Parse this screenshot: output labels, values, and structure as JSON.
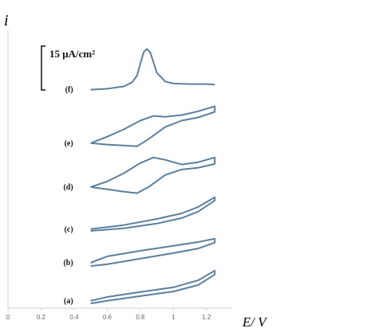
{
  "chart_data": {
    "type": "line",
    "y_label": "i",
    "x_label": "E/ V",
    "xlim": [
      0,
      1.35
    ],
    "xticks": [
      0,
      0.2,
      0.4,
      0.6,
      0.8,
      1,
      1.2
    ],
    "ylim": [
      0,
      95
    ],
    "scale_bar": {
      "label": "15 μA/cm²",
      "value": 15
    },
    "series": [
      {
        "name": "(a)",
        "color": "#5b7f9c",
        "x": [
          0.5,
          0.6,
          0.8,
          1.0,
          1.15,
          1.25,
          1.25,
          1.15,
          1.0,
          0.8,
          0.6,
          0.5
        ],
        "y": [
          2.5,
          3.8,
          5.5,
          7.1,
          9.5,
          12.8,
          11.5,
          7.9,
          5.7,
          4.1,
          2.5,
          1.6
        ]
      },
      {
        "name": "(b)",
        "color": "#5b7f9c",
        "x": [
          0.5,
          0.6,
          0.8,
          1.0,
          1.15,
          1.25,
          1.25,
          1.15,
          1.0,
          0.8,
          0.6,
          0.5
        ],
        "y": [
          15.5,
          17.7,
          19.6,
          21.3,
          22.6,
          23.7,
          22.4,
          20.4,
          18.8,
          16.9,
          15.0,
          14.4
        ]
      },
      {
        "name": "(c)",
        "color": "#5b7f9c",
        "x": [
          0.5,
          0.7,
          0.9,
          1.05,
          1.15,
          1.25,
          1.25,
          1.15,
          1.05,
          0.9,
          0.7,
          0.5
        ],
        "y": [
          27.0,
          28.4,
          30.5,
          32.4,
          34.6,
          37.9,
          36.8,
          33.0,
          30.8,
          28.9,
          27.3,
          26.4
        ]
      },
      {
        "name": "(d)",
        "color": "#5b7f9c",
        "x": [
          0.5,
          0.6,
          0.7,
          0.8,
          0.88,
          0.95,
          1.05,
          1.15,
          1.25,
          1.25,
          1.15,
          1.05,
          0.95,
          0.85,
          0.78,
          0.7,
          0.6,
          0.5
        ],
        "y": [
          41.4,
          43.3,
          46.1,
          49.6,
          51.5,
          50.7,
          49.1,
          49.9,
          51.5,
          49.3,
          48.0,
          47.4,
          45.5,
          41.4,
          39.3,
          39.8,
          40.6,
          41.4
        ]
      },
      {
        "name": "(e)",
        "color": "#5b7f9c",
        "x": [
          0.5,
          0.6,
          0.7,
          0.8,
          0.88,
          0.95,
          1.05,
          1.15,
          1.25,
          1.25,
          1.15,
          1.05,
          0.95,
          0.85,
          0.78,
          0.7,
          0.6,
          0.5
        ],
        "y": [
          56.4,
          58.6,
          61.1,
          64.1,
          65.7,
          65.4,
          66.0,
          67.3,
          69.0,
          67.1,
          65.2,
          64.1,
          61.9,
          57.8,
          55.3,
          55.6,
          55.9,
          56.4
        ]
      },
      {
        "name": "(f)",
        "color": "#5b7f9c",
        "x": [
          0.5,
          0.6,
          0.7,
          0.75,
          0.78,
          0.8,
          0.82,
          0.84,
          0.86,
          0.88,
          0.9,
          0.95,
          1.0,
          1.1,
          1.2,
          1.25
        ],
        "y": [
          74.7,
          75.0,
          75.8,
          77.2,
          79.5,
          83.5,
          87.5,
          88.6,
          87.5,
          84.0,
          80.5,
          77.5,
          76.8,
          76.6,
          76.6,
          76.4
        ]
      }
    ]
  }
}
